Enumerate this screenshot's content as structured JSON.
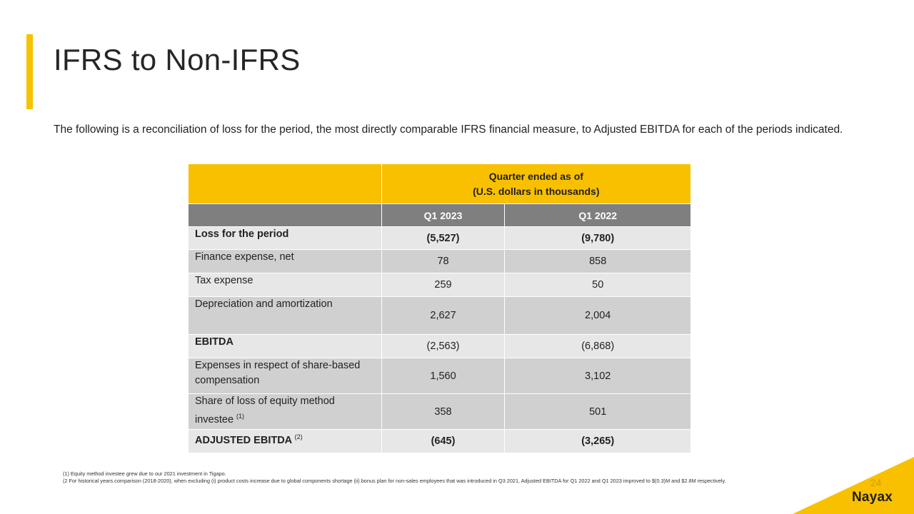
{
  "title": "IFRS to Non-IFRS",
  "intro": "The following is a reconciliation of loss for the period, the most directly comparable IFRS financial measure, to Adjusted EBITDA for each of the periods indicated.",
  "table": {
    "header_line1": "Quarter ended as of",
    "header_line2": "(U.S. dollars in thousands)",
    "columns": [
      "Q1 2023",
      "Q1 2022"
    ],
    "rows": [
      {
        "label": "Loss for the period",
        "sup": "",
        "q1_2023": "(5,527)",
        "q1_2022": "(9,780)"
      },
      {
        "label": "Finance expense, net",
        "sup": "",
        "q1_2023": "78",
        "q1_2022": "858"
      },
      {
        "label": "Tax expense",
        "sup": "",
        "q1_2023": "259",
        "q1_2022": "50"
      },
      {
        "label": "Depreciation  and amortization",
        "sup": "",
        "q1_2023": "2,627",
        "q1_2022": "2,004"
      },
      {
        "label": "EBITDA",
        "sup": "",
        "q1_2023": "(2,563)",
        "q1_2022": "(6,868)"
      },
      {
        "label": "Expenses  in respect  of share-based compensation",
        "sup": "",
        "q1_2023": "1,560",
        "q1_2022": "3,102"
      },
      {
        "label": "Share of loss of equity method investee",
        "sup": "(1)",
        "q1_2023": "358",
        "q1_2022": "501"
      },
      {
        "label": "ADJUSTED EBITDA",
        "sup": "(2)",
        "q1_2023": "(645)",
        "q1_2022": "(3,265)"
      }
    ]
  },
  "footnotes": [
    "(1) Equity method investee grew  due to our 2021  investment in Tigapo.",
    "(2 For historical years comparison (2018-2020),  when excluding (i) product costs increase due to global components shortage (ii) bonus plan for non-sales employees that was introduced in Q3 2021,   Adjusted EBITDA  for Q1 2022  and   Q1 2023 improved to $(0.3)M  and $2.8M  respectively."
  ],
  "page_number": "24",
  "logo_text": "Nayax",
  "colors": {
    "accent": "#f9c000",
    "header_gray": "#7f7f7f",
    "row_light": "#e7e7e7",
    "row_dark": "#d0d0d0"
  }
}
